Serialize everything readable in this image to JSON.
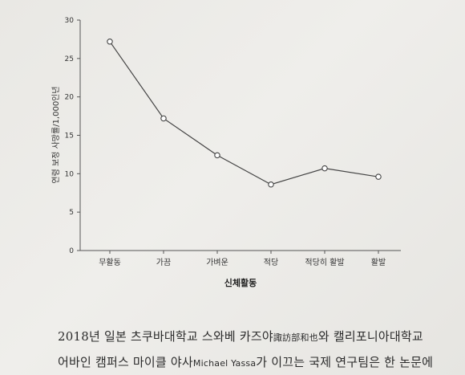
{
  "chart_data": {
    "type": "line",
    "categories": [
      "무활동",
      "가끔",
      "가벼운",
      "적당",
      "적당히 활발",
      "활발"
    ],
    "values": [
      27.2,
      17.2,
      12.4,
      8.6,
      10.7,
      9.6
    ],
    "xlabel": "신체활동",
    "ylabel": "연령 보정 사망률/1,000인년",
    "ylim": [
      0,
      30
    ],
    "yticks": [
      "0",
      "5",
      "10",
      "15",
      "20",
      "25",
      "30"
    ],
    "grid": false,
    "line_color": "#444444",
    "marker_fill": "#ffffff"
  },
  "body": {
    "line1_a": "2018년 일본 츠쿠바대학교 스와베 카즈야",
    "line1_hanja": "諏訪部和也",
    "line1_b": "와 캘리포니아대학교",
    "line2_a": "어바인 캠퍼스 마이클 야사",
    "line2_latin": "Michael Yassa",
    "line2_b": "가 이끄는 국제 연구팀은 한 논문에"
  }
}
